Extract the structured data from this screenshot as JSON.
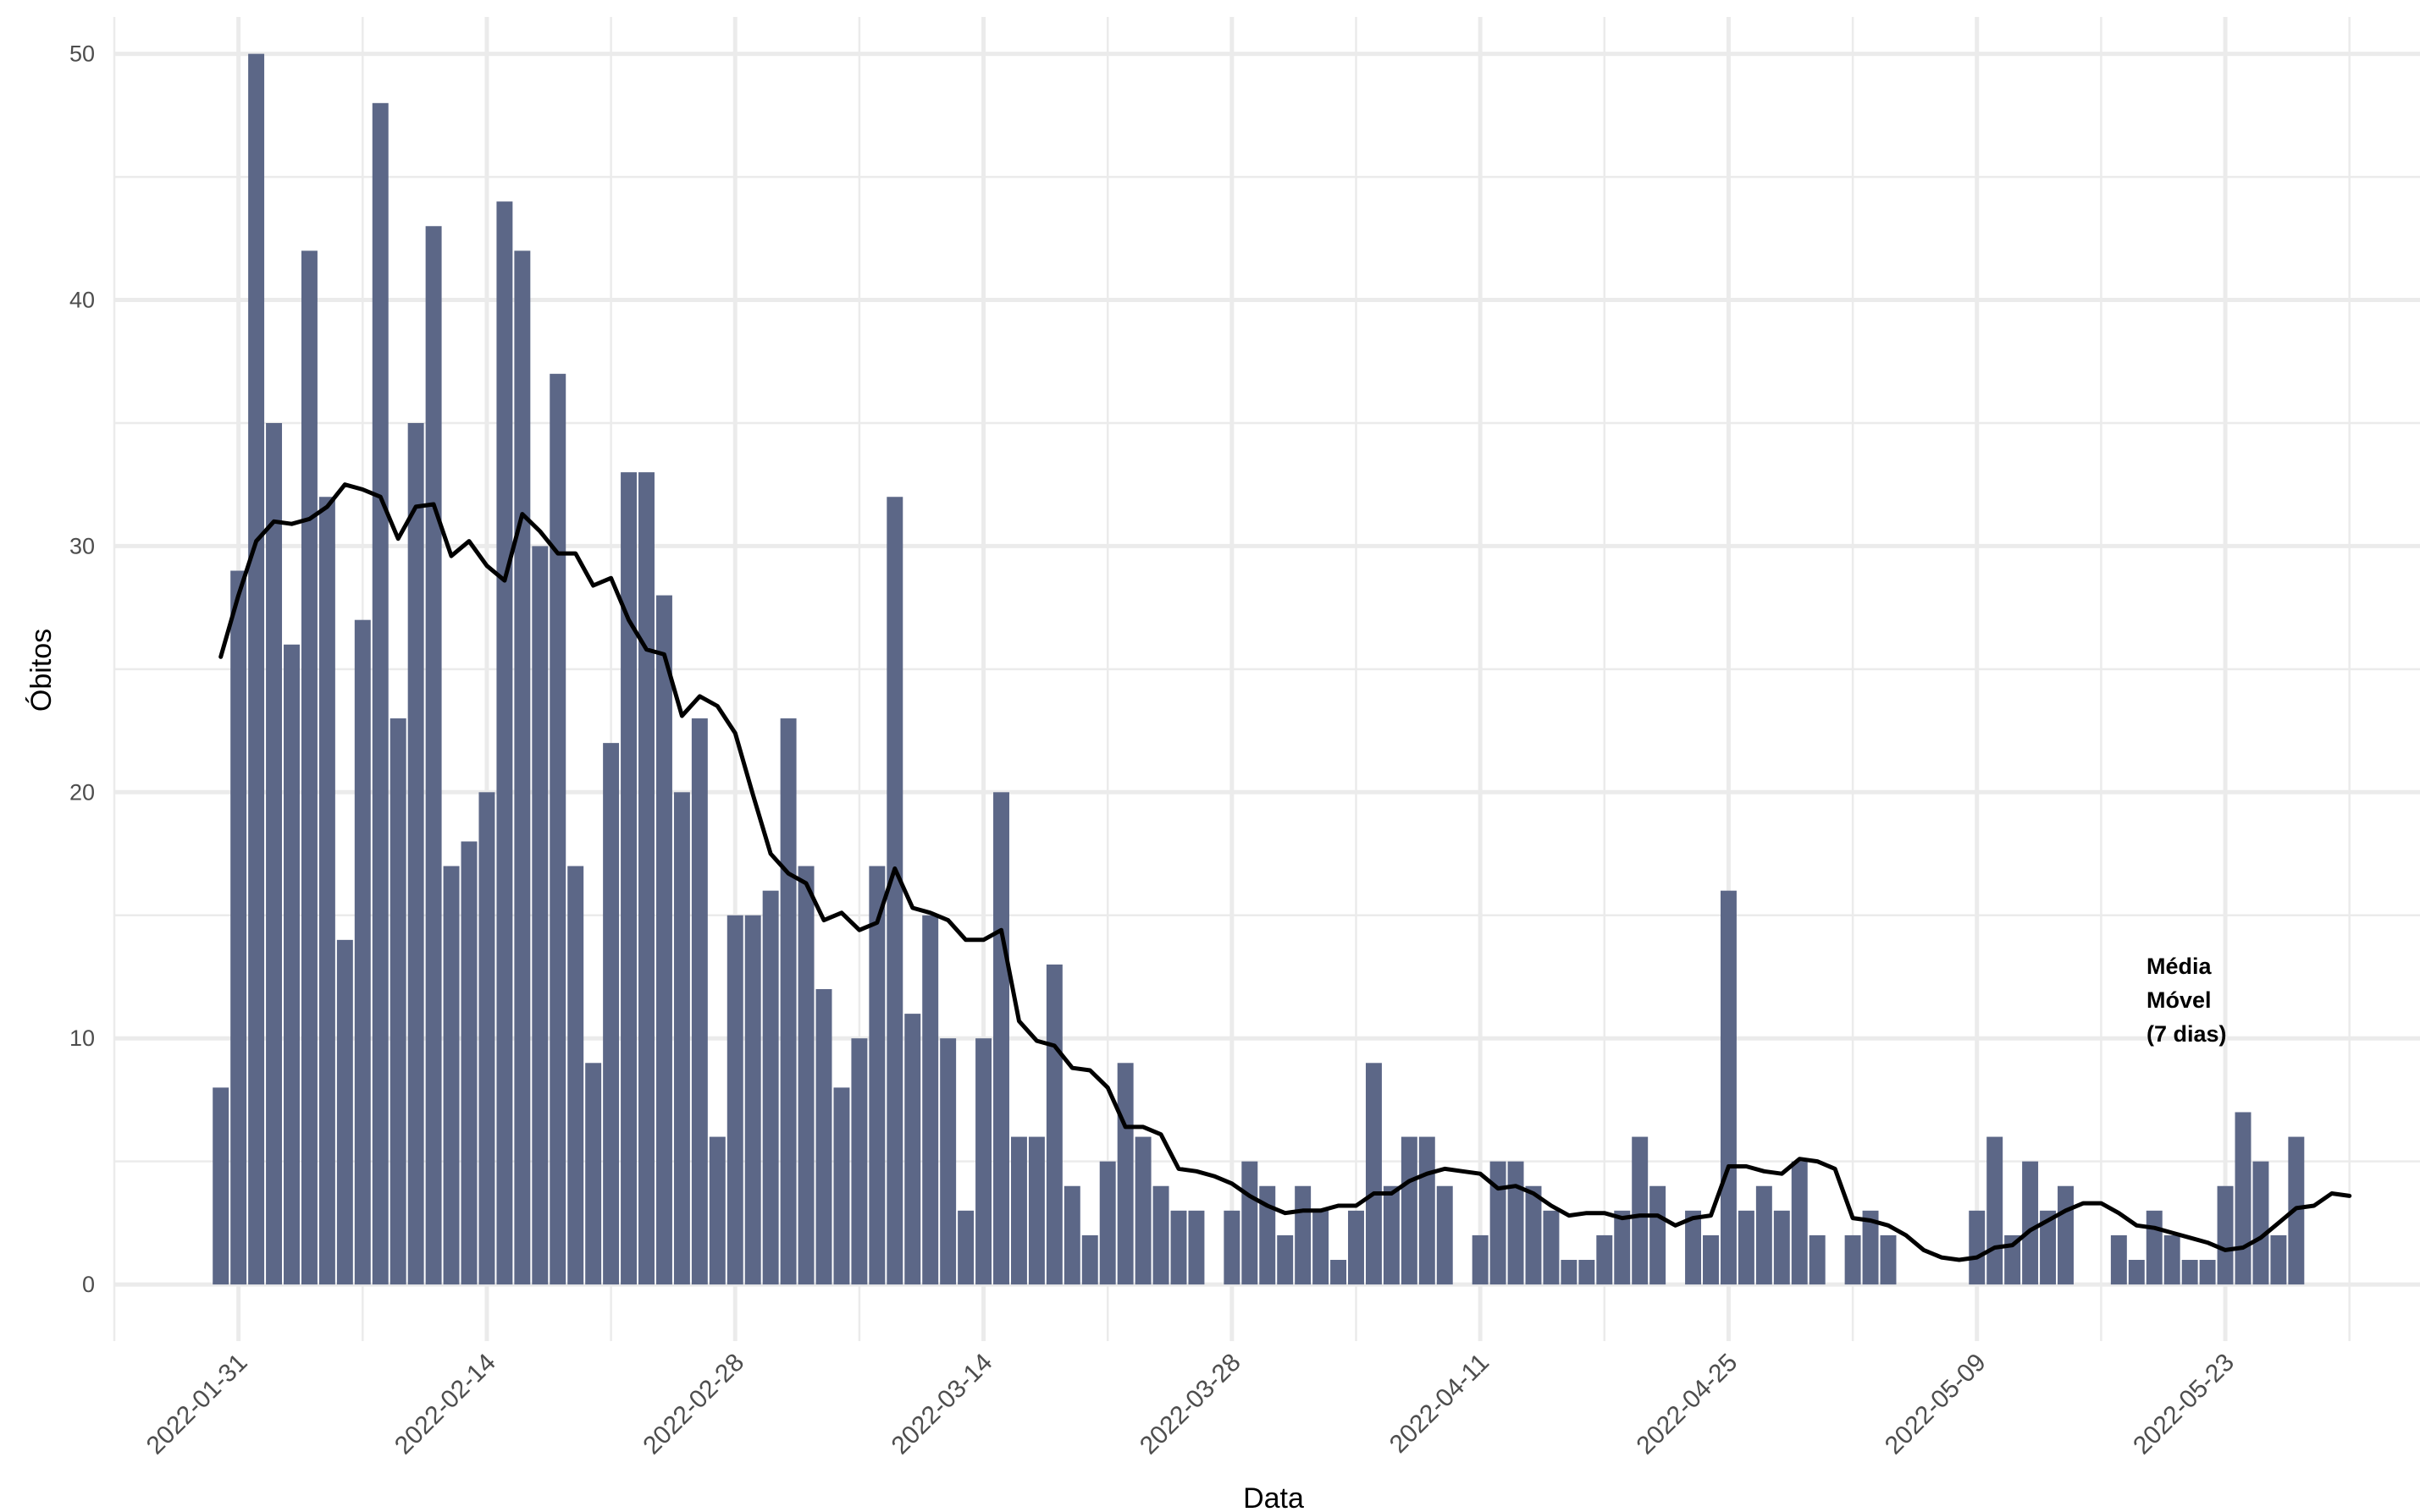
{
  "chart_data": {
    "type": "bar",
    "start_date": "2022-01-30",
    "values": [
      8,
      29,
      50,
      35,
      26,
      42,
      32,
      14,
      27,
      48,
      23,
      35,
      43,
      17,
      18,
      20,
      44,
      42,
      30,
      37,
      17,
      9,
      22,
      33,
      33,
      28,
      20,
      23,
      6,
      15,
      15,
      16,
      23,
      17,
      12,
      8,
      10,
      17,
      32,
      11,
      15,
      10,
      3,
      10,
      20,
      6,
      6,
      13,
      4,
      2,
      5,
      9,
      6,
      4,
      3,
      3,
      0,
      3,
      5,
      4,
      2,
      4,
      3,
      1,
      3,
      9,
      4,
      6,
      6,
      4,
      0,
      2,
      5,
      5,
      4,
      3,
      1,
      1,
      2,
      3,
      6,
      4,
      0,
      3,
      2,
      16,
      3,
      4,
      3,
      5,
      2,
      0,
      2,
      3,
      2,
      0,
      0,
      0,
      0,
      3,
      6,
      2,
      5,
      3,
      4,
      0,
      0,
      2,
      1,
      3,
      2,
      1,
      1,
      4,
      7,
      5,
      2,
      6
    ],
    "moving_average": {
      "label_lines": [
        "Média",
        "Móvel",
        "(7 dias)"
      ],
      "values": [
        25.5,
        28,
        30.2,
        31,
        30.9,
        31.1,
        31.6,
        32.5,
        32.3,
        32,
        30.3,
        31.6,
        31.7,
        29.6,
        30.2,
        29.2,
        28.6,
        31.3,
        30.6,
        29.7,
        29.7,
        28.4,
        28.7,
        27,
        25.8,
        25.6,
        23.1,
        23.9,
        23.5,
        22.4,
        19.9,
        17.5,
        16.7,
        16.3,
        14.8,
        15.1,
        14.4,
        14.7,
        16.9,
        15.3,
        15.1,
        14.8,
        14,
        14,
        14.4,
        10.7,
        9.9,
        9.7,
        8.8,
        8.7,
        8,
        6.4,
        6.4,
        6.1,
        4.7,
        4.6,
        4.4,
        4.1,
        3.6,
        3.2,
        2.9,
        3,
        3,
        3.2,
        3.2,
        3.7,
        3.7,
        4.2,
        4.5,
        4.7,
        4.6,
        4.5,
        3.9,
        4,
        3.7,
        3.2,
        2.8,
        2.9,
        2.9,
        2.7,
        2.8,
        2.8,
        2.4,
        2.7,
        2.8,
        4.8,
        4.8,
        4.6,
        4.5,
        5.1,
        5,
        4.7,
        2.7,
        2.6,
        2.4,
        2,
        1.4,
        1.1,
        1,
        1.1,
        1.5,
        1.6,
        2.2,
        2.6,
        3,
        3.3,
        3.3,
        2.9,
        2.4,
        2.3,
        2.1,
        1.9,
        1.7,
        1.4,
        1.5,
        1.9,
        2.5,
        3.1,
        3.2,
        3.7,
        3.6
      ]
    },
    "xlabel": "Data",
    "ylabel": "Óbitos",
    "ylim": [
      -2.3,
      51.5
    ],
    "y_ticks": [
      0,
      10,
      20,
      30,
      40,
      50
    ],
    "x_ticks": [
      "2022-01-31",
      "2022-02-14",
      "2022-02-28",
      "2022-03-14",
      "2022-03-28",
      "2022-04-11",
      "2022-04-25",
      "2022-05-09",
      "2022-05-23"
    ],
    "x_range_dates": [
      "2022-01-24",
      "2022-06-01"
    ],
    "grid": true,
    "colors": {
      "bar": "#5c6787",
      "line": "#000000",
      "grid": "#ebebeb"
    }
  }
}
